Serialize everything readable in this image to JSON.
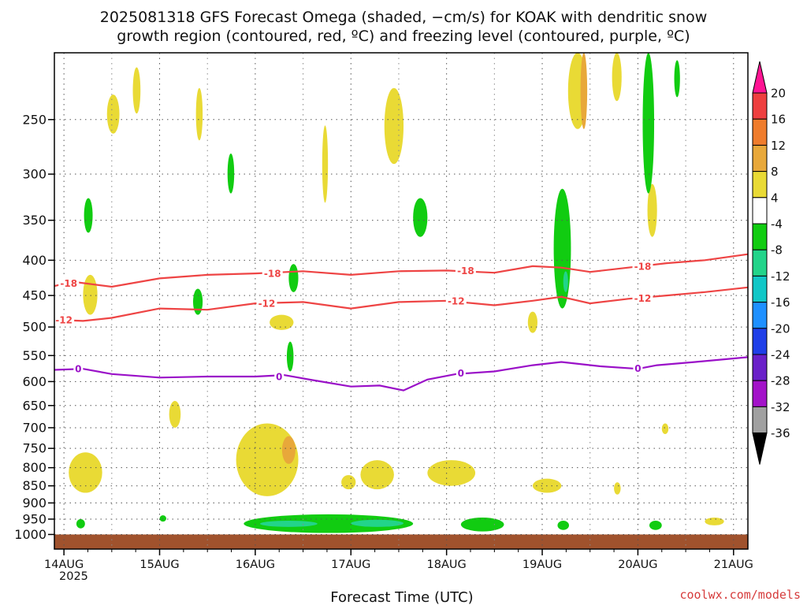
{
  "title": {
    "line1": "2025081318 GFS Forecast Omega (shaded, −cm/s) for KOAK with dendritic snow",
    "line2": "growth region (contoured, red, ºC) and freezing level (contoured, purple, ºC)"
  },
  "credit": "coolwx.com/models",
  "chart_data": {
    "type": "heatmap",
    "title": "2025081318 GFS Forecast Omega (shaded, −cm/s) for KOAK with dendritic snow growth region (contoured, red, ºC) and freezing level (contoured, purple, ºC)",
    "xlabel": "Forecast Time (UTC)",
    "ylabel": "",
    "x_ticks": [
      "14AUG",
      "15AUG",
      "16AUG",
      "17AUG",
      "18AUG",
      "19AUG",
      "20AUG",
      "21AUG"
    ],
    "x_year_label": "2025",
    "xlim_days": [
      13.9,
      21.15
    ],
    "y_scale": "log-pressure",
    "ylim": [
      1050,
      200
    ],
    "y_ticks": [
      250,
      300,
      350,
      400,
      450,
      500,
      550,
      600,
      650,
      700,
      750,
      800,
      850,
      900,
      950,
      1000
    ],
    "grid": true,
    "colorbar": {
      "labels": [
        "20",
        "16",
        "12",
        "8",
        "4",
        "-4",
        "-8",
        "-12",
        "-16",
        "-20",
        "-24",
        "-28",
        "-32",
        "-36"
      ],
      "colors": [
        "#ff1493",
        "#ee3f3f",
        "#ef7c2c",
        "#e8a83a",
        "#e9da35",
        "#ffffff",
        "#11cc11",
        "#22d48a",
        "#11c7c7",
        "#1e90ff",
        "#1f3fe8",
        "#6a20c9",
        "#a312c9",
        "#a0a0a0",
        "#000000"
      ]
    },
    "contours": [
      {
        "name": "dendritic -18",
        "color": "#ee4444",
        "label": "-18",
        "points": [
          [
            13.9,
            436
          ],
          [
            14.1,
            430
          ],
          [
            14.5,
            437
          ],
          [
            15.0,
            425
          ],
          [
            15.5,
            420
          ],
          [
            16.0,
            418
          ],
          [
            16.5,
            415
          ],
          [
            17.0,
            420
          ],
          [
            17.5,
            415
          ],
          [
            18.0,
            414
          ],
          [
            18.5,
            417
          ],
          [
            18.9,
            408
          ],
          [
            19.2,
            410
          ],
          [
            19.5,
            416
          ],
          [
            19.9,
            410
          ],
          [
            20.3,
            404
          ],
          [
            20.7,
            400
          ],
          [
            21.15,
            392
          ]
        ]
      },
      {
        "name": "dendritic -12",
        "color": "#ee4444",
        "label": "-12",
        "points": [
          [
            13.9,
            488
          ],
          [
            14.2,
            490
          ],
          [
            14.5,
            485
          ],
          [
            15.0,
            470
          ],
          [
            15.5,
            472
          ],
          [
            16.0,
            462
          ],
          [
            16.5,
            460
          ],
          [
            17.0,
            470
          ],
          [
            17.5,
            460
          ],
          [
            18.0,
            458
          ],
          [
            18.5,
            465
          ],
          [
            18.9,
            458
          ],
          [
            19.2,
            452
          ],
          [
            19.5,
            462
          ],
          [
            19.9,
            455
          ],
          [
            20.3,
            450
          ],
          [
            20.7,
            445
          ],
          [
            21.15,
            438
          ]
        ]
      },
      {
        "name": "freezing level 0",
        "color": "#9a10c8",
        "label": "0",
        "points": [
          [
            13.9,
            577
          ],
          [
            14.2,
            575
          ],
          [
            14.5,
            585
          ],
          [
            15.0,
            592
          ],
          [
            15.5,
            590
          ],
          [
            16.0,
            590
          ],
          [
            16.3,
            587
          ],
          [
            16.6,
            597
          ],
          [
            17.0,
            610
          ],
          [
            17.3,
            608
          ],
          [
            17.55,
            618
          ],
          [
            17.8,
            596
          ],
          [
            18.1,
            585
          ],
          [
            18.5,
            580
          ],
          [
            18.9,
            568
          ],
          [
            19.2,
            562
          ],
          [
            19.6,
            570
          ],
          [
            20.0,
            575
          ],
          [
            20.2,
            568
          ],
          [
            20.6,
            562
          ],
          [
            21.15,
            553
          ]
        ]
      }
    ],
    "contour_label_positions": [
      {
        "label": "-18",
        "x": 14.05,
        "p": 432
      },
      {
        "label": "-18",
        "x": 16.18,
        "p": 418
      },
      {
        "label": "-18",
        "x": 18.2,
        "p": 414
      },
      {
        "label": "-18",
        "x": 20.05,
        "p": 408
      },
      {
        "label": "-12",
        "x": 14.0,
        "p": 488
      },
      {
        "label": "-12",
        "x": 16.12,
        "p": 462
      },
      {
        "label": "-12",
        "x": 18.1,
        "p": 458
      },
      {
        "label": "-12",
        "x": 20.05,
        "p": 454
      },
      {
        "label": "0",
        "x": 14.15,
        "p": 575
      },
      {
        "label": "0",
        "x": 16.25,
        "p": 590
      },
      {
        "label": "0",
        "x": 18.15,
        "p": 583
      },
      {
        "label": "0",
        "x": 20.0,
        "p": 574
      }
    ],
    "omega_regions": [
      {
        "value": "4-8",
        "x0": 14.45,
        "x1": 14.58,
        "p0": 230,
        "p1": 262
      },
      {
        "value": "4-8",
        "x0": 15.38,
        "x1": 15.45,
        "p0": 225,
        "p1": 268
      },
      {
        "value": "4-8",
        "x0": 17.35,
        "x1": 17.55,
        "p0": 225,
        "p1": 290
      },
      {
        "value": "4-8",
        "x0": 16.7,
        "x1": 16.76,
        "p0": 255,
        "p1": 330
      },
      {
        "value": "4-8",
        "x0": 19.27,
        "x1": 19.47,
        "p0": 200,
        "p1": 258
      },
      {
        "value": "8-12",
        "x0": 19.4,
        "x1": 19.47,
        "p0": 200,
        "p1": 258
      },
      {
        "value": "4-8",
        "x0": 19.73,
        "x1": 19.83,
        "p0": 200,
        "p1": 235
      },
      {
        "value": "4-8",
        "x0": 20.1,
        "x1": 20.2,
        "p0": 310,
        "p1": 370
      },
      {
        "value": "4-8",
        "x0": 14.72,
        "x1": 14.8,
        "p0": 210,
        "p1": 245
      },
      {
        "value": "-4 to -8",
        "x0": 14.21,
        "x1": 14.3,
        "p0": 325,
        "p1": 365
      },
      {
        "value": "-4 to -8",
        "x0": 15.71,
        "x1": 15.78,
        "p0": 280,
        "p1": 320
      },
      {
        "value": "-4 to -8",
        "x0": 17.65,
        "x1": 17.8,
        "p0": 325,
        "p1": 370
      },
      {
        "value": "-4 to -8",
        "x0": 19.12,
        "x1": 19.3,
        "p0": 315,
        "p1": 470
      },
      {
        "value": "-8 to -12",
        "x0": 19.22,
        "x1": 19.27,
        "p0": 415,
        "p1": 445
      },
      {
        "value": "-4 to -8",
        "x0": 20.05,
        "x1": 20.17,
        "p0": 200,
        "p1": 320
      },
      {
        "value": "-4 to -8",
        "x0": 20.38,
        "x1": 20.44,
        "p0": 205,
        "p1": 232
      },
      {
        "value": "-4 to -8",
        "x0": 15.35,
        "x1": 15.45,
        "p0": 440,
        "p1": 480
      },
      {
        "value": "-4 to -8",
        "x0": 16.35,
        "x1": 16.45,
        "p0": 405,
        "p1": 445
      },
      {
        "value": "-4 to -8",
        "x0": 16.33,
        "x1": 16.4,
        "p0": 525,
        "p1": 580
      },
      {
        "value": "4-8",
        "x0": 14.2,
        "x1": 14.35,
        "p0": 420,
        "p1": 480
      },
      {
        "value": "4-8",
        "x0": 16.15,
        "x1": 16.4,
        "p0": 480,
        "p1": 505
      },
      {
        "value": "4-8",
        "x0": 18.85,
        "x1": 18.95,
        "p0": 475,
        "p1": 510
      },
      {
        "value": "4-8",
        "x0": 15.1,
        "x1": 15.22,
        "p0": 640,
        "p1": 700
      },
      {
        "value": "4-8",
        "x0": 14.05,
        "x1": 14.4,
        "p0": 760,
        "p1": 870
      },
      {
        "value": "4-8",
        "x0": 15.8,
        "x1": 16.45,
        "p0": 690,
        "p1": 880
      },
      {
        "value": "8-12",
        "x0": 16.28,
        "x1": 16.42,
        "p0": 720,
        "p1": 790
      },
      {
        "value": "4-8",
        "x0": 16.9,
        "x1": 17.05,
        "p0": 820,
        "p1": 860
      },
      {
        "value": "4-8",
        "x0": 17.1,
        "x1": 17.45,
        "p0": 780,
        "p1": 860
      },
      {
        "value": "4-8",
        "x0": 17.8,
        "x1": 18.3,
        "p0": 780,
        "p1": 850
      },
      {
        "value": "4-8",
        "x0": 18.9,
        "x1": 19.2,
        "p0": 830,
        "p1": 870
      },
      {
        "value": "4-8",
        "x0": 19.75,
        "x1": 19.82,
        "p0": 840,
        "p1": 875
      },
      {
        "value": "4-8",
        "x0": 20.25,
        "x1": 20.32,
        "p0": 690,
        "p1": 715
      },
      {
        "value": "4-8",
        "x0": 20.7,
        "x1": 20.9,
        "p0": 945,
        "p1": 970
      },
      {
        "value": "-4 to -8",
        "x0": 14.13,
        "x1": 14.22,
        "p0": 950,
        "p1": 980
      },
      {
        "value": "-4 to -8",
        "x0": 15.0,
        "x1": 15.07,
        "p0": 938,
        "p1": 958
      },
      {
        "value": "-4 to -8",
        "x0": 15.88,
        "x1": 17.65,
        "p0": 935,
        "p1": 995
      },
      {
        "value": "-8 to -12",
        "x0": 16.05,
        "x1": 16.65,
        "p0": 955,
        "p1": 975
      },
      {
        "value": "-8 to -12",
        "x0": 17.0,
        "x1": 17.55,
        "p0": 952,
        "p1": 975
      },
      {
        "value": "-4 to -8",
        "x0": 18.15,
        "x1": 18.6,
        "p0": 945,
        "p1": 990
      },
      {
        "value": "-4 to -8",
        "x0": 19.16,
        "x1": 19.28,
        "p0": 955,
        "p1": 985
      },
      {
        "value": "-4 to -8",
        "x0": 20.12,
        "x1": 20.25,
        "p0": 955,
        "p1": 985
      }
    ],
    "ground": {
      "value": "below ground",
      "color": "#a0522d",
      "p_top": 1000
    }
  }
}
